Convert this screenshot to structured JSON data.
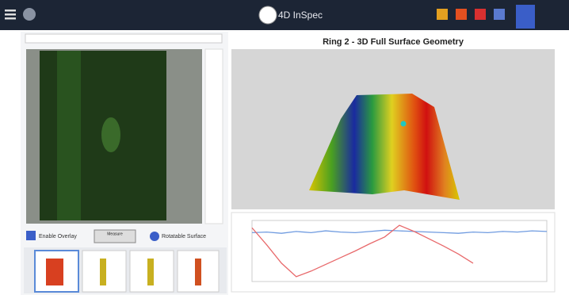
{
  "header": {
    "logo": "4D InSpec"
  },
  "left_panel": {
    "enable_overlay": "Enable Overlay",
    "measure": "Measure",
    "surface": "Rotatable Surface"
  },
  "viewer": {
    "title": "Ring 2 - 3D Full Surface Geometry"
  },
  "profile_plot": {
    "x": [
      0,
      5,
      10,
      15,
      20,
      25,
      30,
      35,
      40,
      45,
      50,
      55,
      60,
      65,
      70,
      75,
      80,
      85,
      90,
      95,
      100
    ],
    "series": [
      {
        "color": "#6f9be0",
        "values": [
          80,
          81,
          79,
          82,
          80,
          83,
          81,
          80,
          82,
          84,
          83,
          82,
          81,
          80,
          79,
          81,
          80,
          82,
          81,
          83,
          82
        ]
      },
      {
        "color": "#e8696b",
        "values": [
          88,
          60,
          30,
          8,
          17,
          28,
          39,
          50,
          62,
          73,
          92,
          82,
          70,
          58,
          45,
          30,
          null,
          null,
          null,
          null,
          null
        ]
      }
    ],
    "xlim": [
      0,
      100
    ],
    "ylim": [
      0,
      100
    ]
  }
}
